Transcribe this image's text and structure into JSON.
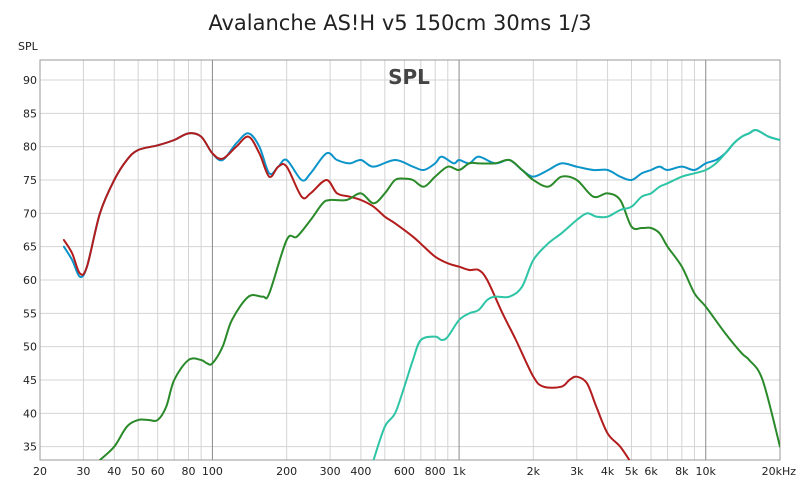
{
  "chart_data": {
    "type": "line",
    "title": "Avalanche AS!H v5 150cm 30ms 1/3",
    "inner_title": "SPL",
    "ylabel": "SPL",
    "xscale": "log",
    "xlim": [
      20,
      20000
    ],
    "ylim": [
      33,
      93
    ],
    "grid": true,
    "y_ticks": [
      35,
      40,
      45,
      50,
      55,
      60,
      65,
      70,
      75,
      80,
      85,
      90
    ],
    "x_ticks": [
      {
        "value": 20,
        "label": "20"
      },
      {
        "value": 30,
        "label": "30"
      },
      {
        "value": 40,
        "label": "40"
      },
      {
        "value": 50,
        "label": "50"
      },
      {
        "value": 60,
        "label": "60"
      },
      {
        "value": 80,
        "label": "80"
      },
      {
        "value": 100,
        "label": "100"
      },
      {
        "value": 200,
        "label": "200"
      },
      {
        "value": 300,
        "label": "300"
      },
      {
        "value": 400,
        "label": "400"
      },
      {
        "value": 600,
        "label": "600"
      },
      {
        "value": 800,
        "label": "800"
      },
      {
        "value": 1000,
        "label": "1k"
      },
      {
        "value": 2000,
        "label": "2k"
      },
      {
        "value": 3000,
        "label": "3k"
      },
      {
        "value": 4000,
        "label": "4k"
      },
      {
        "value": 5000,
        "label": "5k"
      },
      {
        "value": 6000,
        "label": "6k"
      },
      {
        "value": 8000,
        "label": "8k"
      },
      {
        "value": 10000,
        "label": "10k"
      },
      {
        "value": 20000,
        "label": "20kHz"
      }
    ],
    "series": [
      {
        "color": "#0b94c9",
        "points": [
          [
            25,
            65
          ],
          [
            27,
            63
          ],
          [
            29,
            60.5
          ],
          [
            31,
            62
          ],
          [
            35,
            70
          ],
          [
            40,
            75
          ],
          [
            45,
            78
          ],
          [
            50,
            79.5
          ],
          [
            60,
            80.2
          ],
          [
            70,
            81
          ],
          [
            80,
            82
          ],
          [
            90,
            81.5
          ],
          [
            100,
            79
          ],
          [
            110,
            78
          ],
          [
            125,
            80.5
          ],
          [
            140,
            82
          ],
          [
            155,
            80
          ],
          [
            170,
            76
          ],
          [
            185,
            77
          ],
          [
            200,
            78
          ],
          [
            230,
            75
          ],
          [
            250,
            76
          ],
          [
            290,
            79
          ],
          [
            320,
            78
          ],
          [
            360,
            77.5
          ],
          [
            400,
            78
          ],
          [
            450,
            77
          ],
          [
            550,
            78
          ],
          [
            650,
            77
          ],
          [
            720,
            76.5
          ],
          [
            800,
            77.5
          ],
          [
            850,
            78.5
          ],
          [
            950,
            77.5
          ],
          [
            1000,
            78
          ],
          [
            1100,
            77.5
          ],
          [
            1200,
            78.5
          ],
          [
            1400,
            77.5
          ],
          [
            1600,
            78
          ],
          [
            1800,
            76.5
          ],
          [
            2000,
            75.5
          ],
          [
            2300,
            76.5
          ],
          [
            2600,
            77.5
          ],
          [
            3000,
            77
          ],
          [
            3500,
            76.5
          ],
          [
            4000,
            76.5
          ],
          [
            4500,
            75.5
          ],
          [
            5000,
            75
          ],
          [
            5500,
            76
          ],
          [
            6000,
            76.5
          ],
          [
            6500,
            77
          ],
          [
            7000,
            76.5
          ],
          [
            8000,
            77
          ],
          [
            9000,
            76.5
          ],
          [
            10000,
            77.5
          ],
          [
            11000,
            78
          ],
          [
            12000,
            79
          ],
          [
            13000,
            80.5
          ],
          [
            14000,
            81.5
          ],
          [
            15000,
            82
          ],
          [
            16000,
            82.5
          ],
          [
            18000,
            81.5
          ],
          [
            20000,
            81
          ]
        ]
      },
      {
        "color": "#b31c1c",
        "points": [
          [
            25,
            66
          ],
          [
            27,
            64
          ],
          [
            29,
            61
          ],
          [
            31,
            62
          ],
          [
            35,
            70
          ],
          [
            40,
            75
          ],
          [
            45,
            78
          ],
          [
            50,
            79.5
          ],
          [
            60,
            80.2
          ],
          [
            70,
            81
          ],
          [
            80,
            82
          ],
          [
            90,
            81.5
          ],
          [
            100,
            79
          ],
          [
            110,
            78.2
          ],
          [
            125,
            80
          ],
          [
            140,
            81.5
          ],
          [
            155,
            79
          ],
          [
            170,
            75.5
          ],
          [
            185,
            77
          ],
          [
            200,
            77
          ],
          [
            230,
            72.5
          ],
          [
            250,
            73
          ],
          [
            290,
            75
          ],
          [
            320,
            73
          ],
          [
            360,
            72.5
          ],
          [
            400,
            72
          ],
          [
            450,
            71
          ],
          [
            500,
            69.5
          ],
          [
            550,
            68.5
          ],
          [
            650,
            66.5
          ],
          [
            720,
            65
          ],
          [
            800,
            63.5
          ],
          [
            900,
            62.5
          ],
          [
            1000,
            62
          ],
          [
            1100,
            61.5
          ],
          [
            1200,
            61.5
          ],
          [
            1300,
            60
          ],
          [
            1500,
            55
          ],
          [
            1700,
            51
          ],
          [
            2000,
            45.5
          ],
          [
            2200,
            44
          ],
          [
            2600,
            44
          ],
          [
            2800,
            45
          ],
          [
            3000,
            45.5
          ],
          [
            3300,
            44.5
          ],
          [
            3600,
            41
          ],
          [
            4000,
            37
          ],
          [
            4500,
            35
          ],
          [
            5000,
            32.5
          ]
        ]
      },
      {
        "color": "#2a8a2a",
        "points": [
          [
            35,
            33
          ],
          [
            40,
            35
          ],
          [
            45,
            38
          ],
          [
            50,
            39
          ],
          [
            55,
            39
          ],
          [
            60,
            39
          ],
          [
            65,
            41
          ],
          [
            70,
            45
          ],
          [
            80,
            48
          ],
          [
            90,
            48
          ],
          [
            95,
            47.5
          ],
          [
            100,
            47.5
          ],
          [
            110,
            50
          ],
          [
            120,
            54
          ],
          [
            140,
            57.5
          ],
          [
            160,
            57.5
          ],
          [
            170,
            58
          ],
          [
            200,
            66
          ],
          [
            220,
            66.5
          ],
          [
            250,
            69
          ],
          [
            280,
            71.5
          ],
          [
            300,
            72
          ],
          [
            350,
            72
          ],
          [
            400,
            73
          ],
          [
            450,
            71.5
          ],
          [
            500,
            73
          ],
          [
            550,
            75
          ],
          [
            600,
            75.2
          ],
          [
            650,
            75
          ],
          [
            720,
            74
          ],
          [
            800,
            75.5
          ],
          [
            900,
            77
          ],
          [
            1000,
            76.5
          ],
          [
            1100,
            77.5
          ],
          [
            1200,
            77.5
          ],
          [
            1400,
            77.5
          ],
          [
            1600,
            78
          ],
          [
            1800,
            76.5
          ],
          [
            2000,
            75
          ],
          [
            2300,
            74
          ],
          [
            2600,
            75.5
          ],
          [
            3000,
            75
          ],
          [
            3500,
            72.5
          ],
          [
            4000,
            73
          ],
          [
            4500,
            72
          ],
          [
            5000,
            68
          ],
          [
            5500,
            67.8
          ],
          [
            6000,
            67.8
          ],
          [
            6500,
            67
          ],
          [
            7000,
            65
          ],
          [
            8000,
            62
          ],
          [
            9000,
            58
          ],
          [
            10000,
            56
          ],
          [
            12000,
            52
          ],
          [
            14000,
            49
          ],
          [
            15000,
            48
          ],
          [
            17000,
            45
          ],
          [
            20000,
            35
          ]
        ]
      },
      {
        "color": "#2ec4a6",
        "points": [
          [
            450,
            33
          ],
          [
            500,
            38
          ],
          [
            550,
            40
          ],
          [
            600,
            44
          ],
          [
            650,
            48
          ],
          [
            700,
            51
          ],
          [
            800,
            51.5
          ],
          [
            850,
            51
          ],
          [
            900,
            51.5
          ],
          [
            1000,
            54
          ],
          [
            1100,
            55
          ],
          [
            1200,
            55.5
          ],
          [
            1300,
            57
          ],
          [
            1400,
            57.5
          ],
          [
            1600,
            57.5
          ],
          [
            1800,
            59
          ],
          [
            2000,
            63
          ],
          [
            2300,
            65.5
          ],
          [
            2600,
            67
          ],
          [
            3000,
            69
          ],
          [
            3300,
            70
          ],
          [
            3600,
            69.5
          ],
          [
            4000,
            69.5
          ],
          [
            4500,
            70.5
          ],
          [
            5000,
            71
          ],
          [
            5500,
            72.5
          ],
          [
            6000,
            73
          ],
          [
            6500,
            74
          ],
          [
            7000,
            74.5
          ],
          [
            8000,
            75.5
          ],
          [
            9000,
            76
          ],
          [
            10000,
            76.5
          ],
          [
            11000,
            77.5
          ],
          [
            12000,
            79
          ],
          [
            13000,
            80.5
          ],
          [
            14000,
            81.5
          ],
          [
            15000,
            82
          ],
          [
            16000,
            82.5
          ],
          [
            18000,
            81.5
          ],
          [
            20000,
            81
          ]
        ]
      }
    ]
  }
}
